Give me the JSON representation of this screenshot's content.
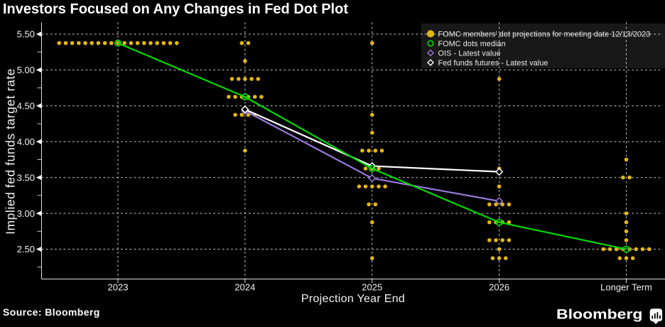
{
  "header": {
    "title": "Investors Focused on Any Changes in Fed Dot Plot"
  },
  "footer": {
    "source_label": "Source: Bloomberg",
    "brand": "Bloomberg",
    "brand_icon": "bar-chart-speech-bubble-icon"
  },
  "colors": {
    "background": "#000000",
    "text": "#f2f2f2",
    "grid": "#c8c8c8",
    "axis": "#e2e2e2",
    "legend_bg": "#181818",
    "fomc_dots": "#e3b613",
    "median": "#00d900",
    "ois": "#9878d8",
    "futures": "#ffffff"
  },
  "chart_data": {
    "type": "scatter",
    "title": "Investors Focused on Any Changes in Fed Dot Plot",
    "xlabel": "Projection Year End",
    "ylabel": "Implied fed funds target rate",
    "categories": [
      "2023",
      "2024",
      "2025",
      "2026",
      "Longer Term"
    ],
    "y_ticks_major": [
      5.5,
      5.0,
      4.5,
      4.0,
      3.5,
      3.0,
      2.5
    ],
    "y_ticks_minor": [
      5.25,
      4.75,
      4.25,
      3.75,
      3.25,
      2.75,
      2.25
    ],
    "y_tick_format": 2,
    "ylim": [
      2.08,
      5.67
    ],
    "grid": "dashed",
    "legend_position": "top-right",
    "series": [
      {
        "name": "FOMC members' dot projections for meeting date 12/13/2023",
        "type": "dot-distribution",
        "marker": "filled-circle",
        "color": "#e3b613",
        "dots": [
          {
            "category": "2023",
            "rows": [
              {
                "rate": 5.375,
                "count": 19
              }
            ]
          },
          {
            "category": "2024",
            "rows": [
              {
                "rate": 5.375,
                "count": 2
              },
              {
                "rate": 5.125,
                "count": 1
              },
              {
                "rate": 4.875,
                "count": 5
              },
              {
                "rate": 4.625,
                "count": 6
              },
              {
                "rate": 4.375,
                "count": 4
              },
              {
                "rate": 3.875,
                "count": 1
              }
            ]
          },
          {
            "category": "2025",
            "rows": [
              {
                "rate": 5.375,
                "count": 1
              },
              {
                "rate": 4.375,
                "count": 1
              },
              {
                "rate": 4.125,
                "count": 1
              },
              {
                "rate": 3.875,
                "count": 4
              },
              {
                "rate": 3.625,
                "count": 3
              },
              {
                "rate": 3.375,
                "count": 5
              },
              {
                "rate": 3.125,
                "count": 2
              },
              {
                "rate": 2.875,
                "count": 1
              },
              {
                "rate": 2.375,
                "count": 1
              }
            ]
          },
          {
            "category": "2026",
            "rows": [
              {
                "rate": 4.875,
                "count": 1
              },
              {
                "rate": 3.625,
                "count": 1
              },
              {
                "rate": 3.375,
                "count": 1
              },
              {
                "rate": 3.125,
                "count": 4
              },
              {
                "rate": 2.875,
                "count": 4
              },
              {
                "rate": 2.625,
                "count": 4
              },
              {
                "rate": 2.5,
                "count": 1
              },
              {
                "rate": 2.375,
                "count": 3
              }
            ]
          },
          {
            "category": "Longer Term",
            "rows": [
              {
                "rate": 3.75,
                "count": 1
              },
              {
                "rate": 3.5,
                "count": 2
              },
              {
                "rate": 3.0,
                "count": 1
              },
              {
                "rate": 2.875,
                "count": 1
              },
              {
                "rate": 2.75,
                "count": 1
              },
              {
                "rate": 2.625,
                "count": 1
              },
              {
                "rate": 2.5,
                "count": 8
              },
              {
                "rate": 2.375,
                "count": 3
              }
            ]
          }
        ]
      },
      {
        "name": "FOMC dots median",
        "type": "line",
        "marker": "open-circle",
        "color": "#00d900",
        "x": [
          "2023",
          "2024",
          "2025",
          "2026",
          "Longer Term"
        ],
        "values": [
          5.375,
          4.625,
          3.625,
          2.875,
          2.5
        ]
      },
      {
        "name": "OIS - Latest value",
        "type": "line",
        "marker": "open-diamond",
        "color": "#9878d8",
        "x": [
          "2024",
          "2025",
          "2026"
        ],
        "values": [
          4.43,
          3.49,
          3.17
        ]
      },
      {
        "name": "Fed funds futures - Latest value",
        "type": "line",
        "marker": "open-diamond",
        "color": "#ffffff",
        "x": [
          "2024",
          "2025",
          "2026"
        ],
        "values": [
          4.45,
          3.66,
          3.58
        ]
      }
    ]
  }
}
